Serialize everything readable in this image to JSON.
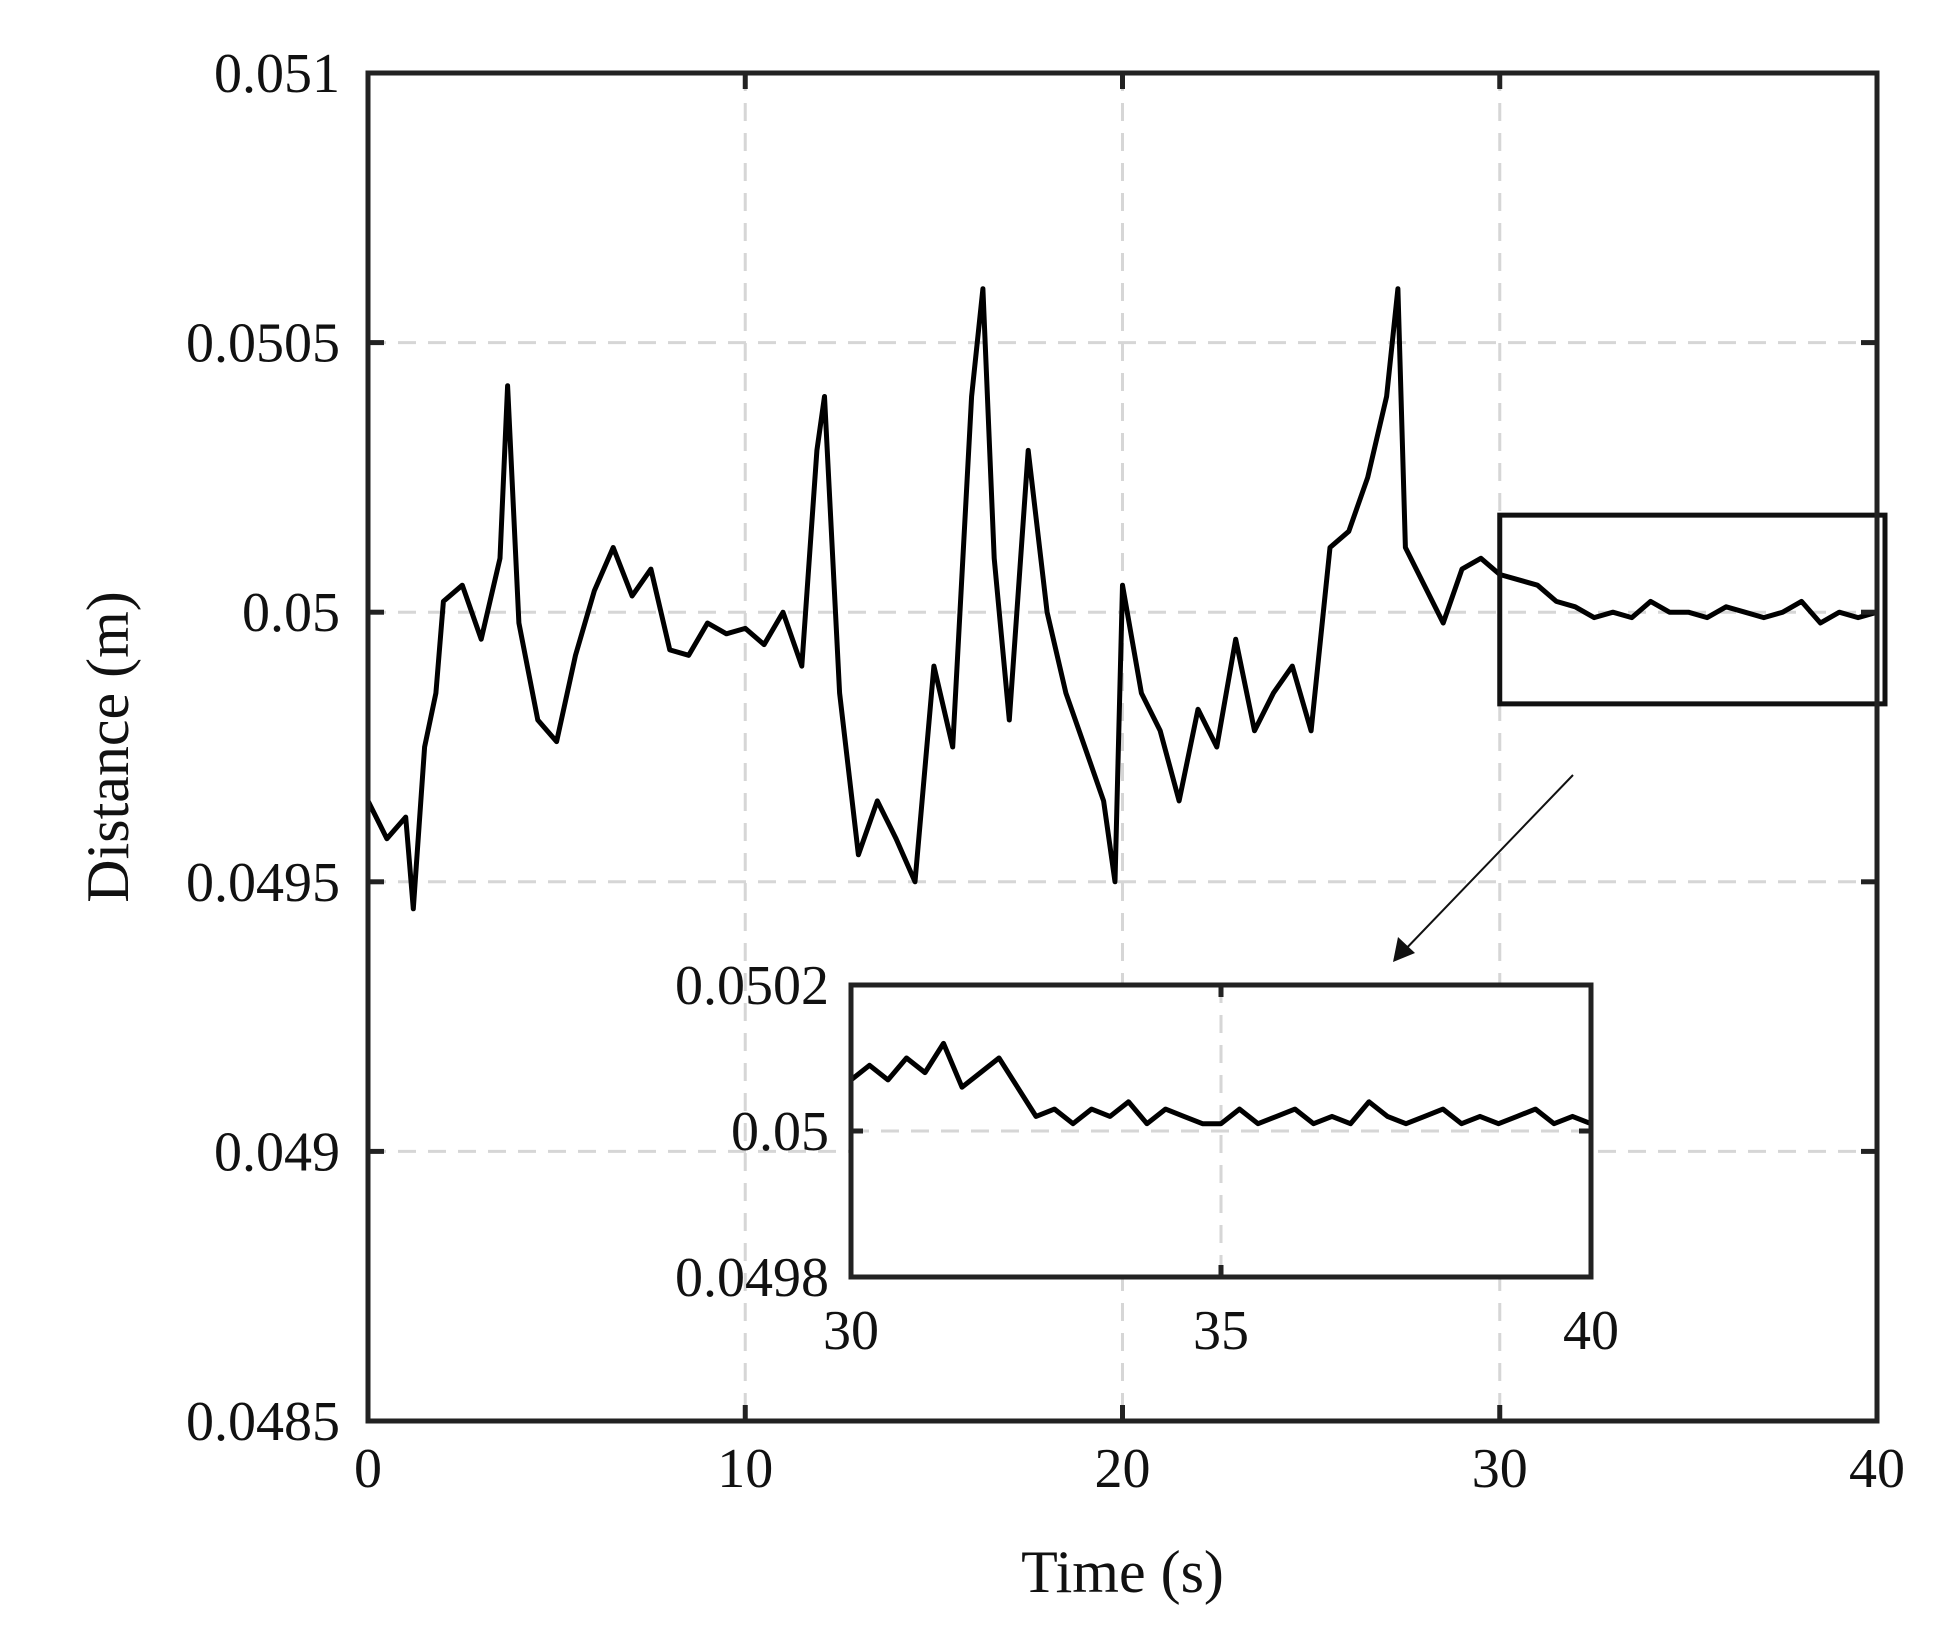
{
  "chart_data": [
    {
      "type": "line",
      "title": "",
      "xlabel": "Time (s)",
      "ylabel": "Distance (m)",
      "xlim": [
        0,
        40
      ],
      "ylim": [
        0.0485,
        0.051
      ],
      "xticks": [
        "0",
        "10",
        "20",
        "30",
        "40"
      ],
      "yticks": [
        "0.0485",
        "0.049",
        "0.0495",
        "0.05",
        "0.0505",
        "0.051"
      ],
      "grid": true,
      "legend": "none",
      "line_color": "#000000",
      "series": [
        {
          "x": [
            0,
            0.5,
            1,
            1.2,
            1.5,
            1.8,
            2,
            2.5,
            3,
            3.5,
            3.7,
            4,
            4.5,
            5,
            5.5,
            6,
            6.5,
            7,
            7.5,
            8,
            8.5,
            9,
            9.5,
            10,
            10.5,
            11,
            11.5,
            11.9,
            12.1,
            12.5,
            13,
            13.5,
            14,
            14.5,
            15,
            15.5,
            16,
            16.3,
            16.6,
            17,
            17.5,
            18,
            18.5,
            19,
            19.5,
            19.8,
            20,
            20.5,
            21,
            21.5,
            22,
            22.5,
            23,
            23.5,
            24,
            24.5,
            25,
            25.5,
            26,
            26.5,
            27,
            27.3,
            27.5,
            28,
            28.5,
            29,
            29.5,
            30,
            30.5,
            31,
            31.5,
            32,
            32.5,
            33,
            33.5,
            34,
            34.5,
            35,
            35.5,
            36,
            36.5,
            37,
            37.5,
            38,
            38.5,
            39,
            39.5,
            40
          ],
          "y": [
            0.04965,
            0.04958,
            0.04962,
            0.04945,
            0.04975,
            0.04985,
            0.05002,
            0.05005,
            0.04995,
            0.0501,
            0.05042,
            0.04998,
            0.0498,
            0.04976,
            0.04992,
            0.05004,
            0.05012,
            0.05003,
            0.05008,
            0.04993,
            0.04992,
            0.04998,
            0.04996,
            0.04997,
            0.04994,
            0.05,
            0.0499,
            0.0503,
            0.0504,
            0.04985,
            0.04955,
            0.04965,
            0.04958,
            0.0495,
            0.0499,
            0.04975,
            0.0504,
            0.0506,
            0.0501,
            0.0498,
            0.0503,
            0.05,
            0.04985,
            0.04975,
            0.04965,
            0.0495,
            0.05005,
            0.04985,
            0.04978,
            0.04965,
            0.04982,
            0.04975,
            0.04995,
            0.04978,
            0.04985,
            0.0499,
            0.04978,
            0.05012,
            0.05015,
            0.05025,
            0.0504,
            0.0506,
            0.05012,
            0.05005,
            0.04998,
            0.05008,
            0.0501,
            0.05007,
            0.05006,
            0.05005,
            0.05002,
            0.05001,
            0.04999,
            0.05,
            0.04999,
            0.05002,
            0.05,
            0.05,
            0.04999,
            0.05001,
            0.05,
            0.04999,
            0.05,
            0.05002,
            0.04998,
            0.05,
            0.04999,
            0.05
          ]
        }
      ]
    },
    {
      "type": "line",
      "title": "",
      "xlabel": "",
      "ylabel": "",
      "xlim": [
        30,
        40
      ],
      "ylim": [
        0.0498,
        0.0502
      ],
      "xticks": [
        "30",
        "35",
        "40"
      ],
      "yticks": [
        "0.0498",
        "0.05",
        "0.0502"
      ],
      "grid": true,
      "legend": "none",
      "line_color": "#000000",
      "series": [
        {
          "x": [
            30,
            30.25,
            30.5,
            30.75,
            31,
            31.25,
            31.5,
            31.75,
            32,
            32.25,
            32.5,
            32.75,
            33,
            33.25,
            33.5,
            33.75,
            34,
            34.25,
            34.5,
            34.75,
            35,
            35.25,
            35.5,
            35.75,
            36,
            36.25,
            36.5,
            36.75,
            37,
            37.25,
            37.5,
            37.75,
            38,
            38.25,
            38.5,
            38.75,
            39,
            39.25,
            39.5,
            39.75,
            40
          ],
          "y": [
            0.05007,
            0.05009,
            0.05007,
            0.0501,
            0.05008,
            0.05012,
            0.05006,
            0.05008,
            0.0501,
            0.05006,
            0.05002,
            0.05003,
            0.05001,
            0.05003,
            0.05002,
            0.05004,
            0.05001,
            0.05003,
            0.05002,
            0.05001,
            0.05001,
            0.05003,
            0.05001,
            0.05002,
            0.05003,
            0.05001,
            0.05002,
            0.05001,
            0.05004,
            0.05002,
            0.05001,
            0.05002,
            0.05003,
            0.05001,
            0.05002,
            0.05001,
            0.05002,
            0.05003,
            0.05001,
            0.05002,
            0.05001
          ]
        }
      ]
    }
  ]
}
